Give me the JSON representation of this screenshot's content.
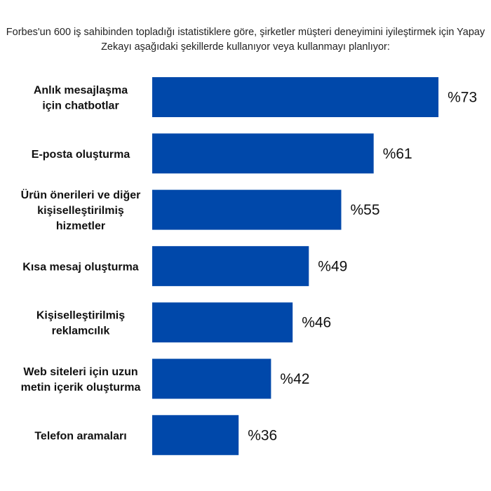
{
  "chart_data": {
    "type": "bar",
    "orientation": "horizontal",
    "title": "Forbes'un 600 iş sahibinden topladığı istatistiklere göre, şirketler müşteri deneyimini iyileştirmek için Yapay Zekayı aşağıdaki şekillerde kullanıyor veya kullanmayı planlıyor:",
    "categories": [
      [
        "Anlık mesajlaşma",
        "için chatbotlar"
      ],
      [
        "E-posta oluşturma"
      ],
      [
        "Ürün önerileri ve diğer",
        "kişiselleştirilmiş",
        "hizmetler"
      ],
      [
        "Kısa mesaj oluşturma"
      ],
      [
        "Kişiselleştirilmiş",
        "reklamcılık"
      ],
      [
        "Web siteleri için uzun",
        "metin içerik oluşturma"
      ],
      [
        "Telefon aramaları"
      ]
    ],
    "values": [
      73,
      61,
      55,
      49,
      46,
      42,
      36
    ],
    "value_labels": [
      "%73",
      "%61",
      "%55",
      "%49",
      "%46",
      "%42",
      "%36"
    ],
    "xlabel": "",
    "ylabel": "",
    "grid": false,
    "bar_color": "#0048AA"
  }
}
